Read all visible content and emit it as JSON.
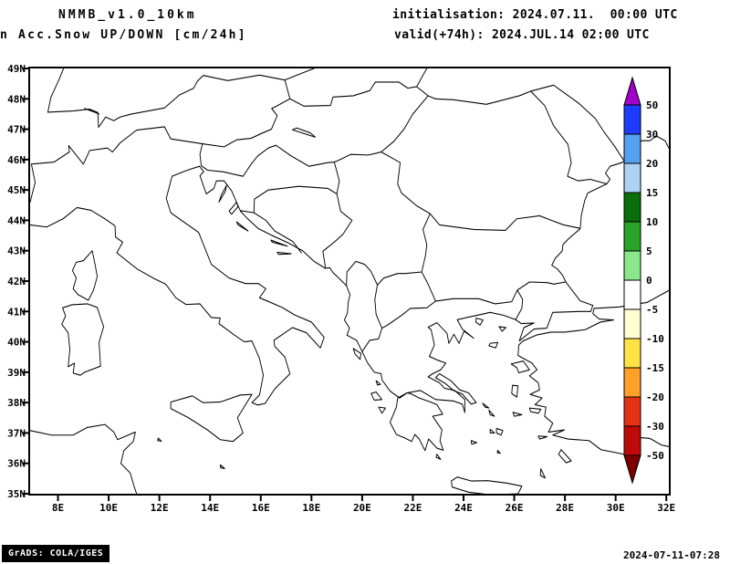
{
  "header": {
    "model_title": "NMMB_v1.0_10km",
    "product_title": "n Acc.Snow UP/DOWN [cm/24h]",
    "init_line": "initialisation: 2024.07.11.  00:00 UTC",
    "valid_line": "valid(+74h): 2024.JUL.14 02:00 UTC"
  },
  "footer": {
    "credit": "GrADS: COLA/IGES",
    "generated": "2024-07-11-07:28"
  },
  "chart_data": {
    "type": "heatmap",
    "subtype": "filled-contour forecast map on lat/lon grid (GrADS)",
    "title": "NMMB_v1.0_10km  Acc.Snow UP/DOWN [cm/24h]",
    "x_axis": {
      "ticks": [
        "8E",
        "10E",
        "12E",
        "14E",
        "16E",
        "18E",
        "20E",
        "22E",
        "24E",
        "26E",
        "28E",
        "30E",
        "32E"
      ],
      "range_deg_east": [
        6.9,
        32.1
      ]
    },
    "y_axis": {
      "ticks": [
        "49N",
        "48N",
        "47N",
        "46N",
        "45N",
        "44N",
        "43N",
        "42N",
        "41N",
        "40N",
        "39N",
        "38N",
        "37N",
        "36N",
        "35N"
      ],
      "range_deg_north": [
        35,
        49
      ]
    },
    "colorbar": {
      "units": "cm/24h",
      "levels": [
        "50",
        "30",
        "20",
        "15",
        "10",
        "5",
        "0",
        "-5",
        "-10",
        "-15",
        "-20",
        "-30",
        "-50"
      ],
      "colors": [
        "#a000c8",
        "#1e3cff",
        "#55a0f0",
        "#aed2f2",
        "#0a6e0a",
        "#28a428",
        "#8ae88a",
        "#ffffff",
        "#ffffd2",
        "#ffe346",
        "#ffa028",
        "#e63214",
        "#c00a0a",
        "#7d0000"
      ],
      "orientation": "vertical-right",
      "has_end_arrows": true
    },
    "field": {
      "name": "Accumulated snow UP/DOWN",
      "units": "cm/24h",
      "depicted_values": "entire domain unshaded (white band around 0) - no snow accumulation contours visible"
    },
    "region": "Italy, Alps, Balkans, Greece, western Turkey, western Black Sea (coastlines and country borders only)",
    "grid": "off",
    "legend_position": "right"
  }
}
